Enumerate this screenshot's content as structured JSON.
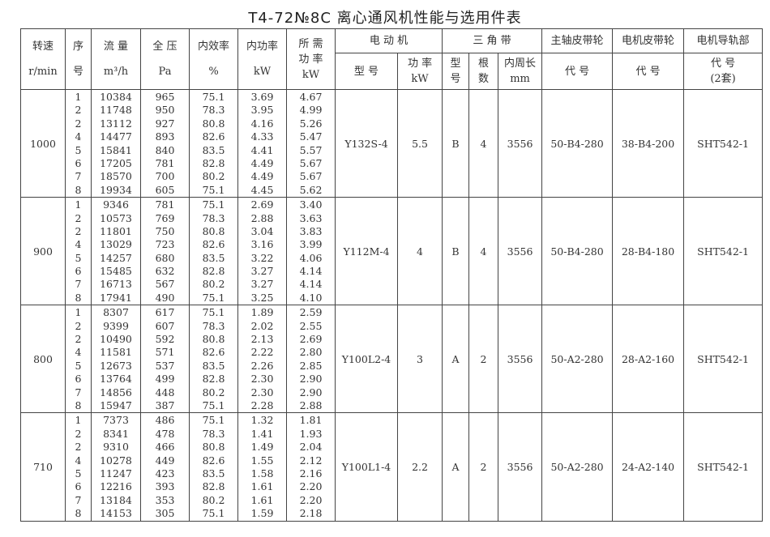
{
  "title": "T4-72№8C 离心通风机性能与选用件表",
  "headers": {
    "speed": "转速",
    "speed_unit": "r/min",
    "seq": "序",
    "seq2": "号",
    "flow": "流 量",
    "flow_unit": "m³/h",
    "pressure": "全 压",
    "pressure_unit": "Pa",
    "efficiency": "内效率",
    "efficiency_unit": "%",
    "power": "内功率",
    "power_unit": "kW",
    "req_power": "所 需",
    "req_power2": "功 率",
    "req_power_unit": "kW",
    "motor": "电 动 机",
    "motor_model": "型 号",
    "motor_power": "功 率",
    "motor_power_unit": "kW",
    "belt": "三 角 带",
    "belt_type": "型",
    "belt_type2": "号",
    "belt_count": "根",
    "belt_count2": "数",
    "belt_len": "内周长",
    "belt_len_unit": "mm",
    "shaft_pulley": "主轴皮带轮",
    "shaft_code": "代 号",
    "motor_pulley": "电机皮带轮",
    "motor_pulley_code": "代 号",
    "rail": "电机导轨部",
    "rail_code": "代 号",
    "rail_sets": "(2套)"
  },
  "groups": [
    {
      "speed": "1000",
      "seq": [
        "1",
        "2",
        "2",
        "4",
        "5",
        "6",
        "7",
        "8"
      ],
      "flow": [
        "10384",
        "11748",
        "13112",
        "14477",
        "15841",
        "17205",
        "18570",
        "19934"
      ],
      "pressure": [
        "965",
        "950",
        "927",
        "893",
        "840",
        "781",
        "700",
        "605"
      ],
      "efficiency": [
        "75.1",
        "78.3",
        "80.8",
        "82.6",
        "83.5",
        "82.8",
        "80.2",
        "75.1"
      ],
      "power": [
        "3.69",
        "3.95",
        "4.16",
        "4.33",
        "4.41",
        "4.49",
        "4.49",
        "4.45"
      ],
      "req_power": [
        "4.67",
        "4.99",
        "5.26",
        "5.47",
        "5.57",
        "5.67",
        "5.67",
        "5.62"
      ],
      "motor_model": "Y132S-4",
      "motor_power": "5.5",
      "belt_type": "B",
      "belt_count": "4",
      "belt_len": "3556",
      "shaft_pulley": "50-B4-280",
      "motor_pulley": "38-B4-200",
      "rail": "SHT542-1"
    },
    {
      "speed": "900",
      "seq": [
        "1",
        "2",
        "2",
        "4",
        "5",
        "6",
        "7",
        "8"
      ],
      "flow": [
        "9346",
        "10573",
        "11801",
        "13029",
        "14257",
        "15485",
        "16713",
        "17941"
      ],
      "pressure": [
        "781",
        "769",
        "750",
        "723",
        "680",
        "632",
        "567",
        "490"
      ],
      "efficiency": [
        "75.1",
        "78.3",
        "80.8",
        "82.6",
        "83.5",
        "82.8",
        "80.2",
        "75.1"
      ],
      "power": [
        "2.69",
        "2.88",
        "3.04",
        "3.16",
        "3.22",
        "3.27",
        "3.27",
        "3.25"
      ],
      "req_power": [
        "3.40",
        "3.63",
        "3.83",
        "3.99",
        "4.06",
        "4.14",
        "4.14",
        "4.10"
      ],
      "motor_model": "Y112M-4",
      "motor_power": "4",
      "belt_type": "B",
      "belt_count": "4",
      "belt_len": "3556",
      "shaft_pulley": "50-B4-280",
      "motor_pulley": "28-B4-180",
      "rail": "SHT542-1"
    },
    {
      "speed": "800",
      "seq": [
        "1",
        "2",
        "2",
        "4",
        "5",
        "6",
        "7",
        "8"
      ],
      "flow": [
        "8307",
        "9399",
        "10490",
        "11581",
        "12673",
        "13764",
        "14856",
        "15947"
      ],
      "pressure": [
        "617",
        "607",
        "592",
        "571",
        "537",
        "499",
        "448",
        "387"
      ],
      "efficiency": [
        "75.1",
        "78.3",
        "80.8",
        "82.6",
        "83.5",
        "82.8",
        "80.2",
        "75.1"
      ],
      "power": [
        "1.89",
        "2.02",
        "2.13",
        "2.22",
        "2.26",
        "2.30",
        "2.30",
        "2.28"
      ],
      "req_power": [
        "2.59",
        "2.55",
        "2.69",
        "2.80",
        "2.85",
        "2.90",
        "2.90",
        "2.88"
      ],
      "motor_model": "Y100L2-4",
      "motor_power": "3",
      "belt_type": "A",
      "belt_count": "2",
      "belt_len": "3556",
      "shaft_pulley": "50-A2-280",
      "motor_pulley": "28-A2-160",
      "rail": "SHT542-1"
    },
    {
      "speed": "710",
      "seq": [
        "1",
        "2",
        "2",
        "4",
        "5",
        "6",
        "7",
        "8"
      ],
      "flow": [
        "7373",
        "8341",
        "9310",
        "10278",
        "11247",
        "12216",
        "13184",
        "14153"
      ],
      "pressure": [
        "486",
        "478",
        "466",
        "449",
        "423",
        "393",
        "353",
        "305"
      ],
      "efficiency": [
        "75.1",
        "78.3",
        "80.8",
        "82.6",
        "83.5",
        "82.8",
        "80.2",
        "75.1"
      ],
      "power": [
        "1.32",
        "1.41",
        "1.49",
        "1.55",
        "1.58",
        "1.61",
        "1.61",
        "1.59"
      ],
      "req_power": [
        "1.81",
        "1.93",
        "2.04",
        "2.12",
        "2.16",
        "2.20",
        "2.20",
        "2.18"
      ],
      "motor_model": "Y100L1-4",
      "motor_power": "2.2",
      "belt_type": "A",
      "belt_count": "2",
      "belt_len": "3556",
      "shaft_pulley": "50-A2-280",
      "motor_pulley": "24-A2-140",
      "rail": "SHT542-1"
    }
  ]
}
